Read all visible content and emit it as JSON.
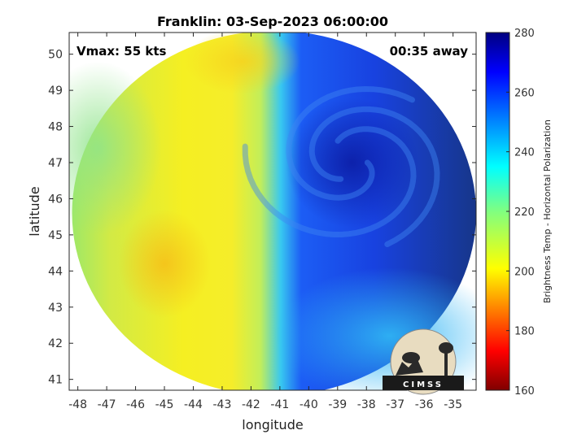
{
  "chart_data": {
    "type": "heatmap",
    "title": "Franklin: 03-Sep-2023 06:00:00",
    "xlabel": "longitude",
    "ylabel": "latitude",
    "xlim": [
      -48.3,
      -34.2
    ],
    "ylim": [
      40.7,
      50.6
    ],
    "x_ticks": [
      -48,
      -47,
      -46,
      -45,
      -44,
      -43,
      -42,
      -41,
      -40,
      -39,
      -38,
      -37,
      -36,
      -35
    ],
    "y_ticks": [
      41,
      42,
      43,
      44,
      45,
      46,
      47,
      48,
      49,
      50
    ],
    "annotations": {
      "vmax": "Vmax: 55 kts",
      "time_away": "00:35 away"
    },
    "colorbar": {
      "label": "Brightness Temp - Horizontal Polarization",
      "min": 160,
      "max": 280,
      "ticks": [
        160,
        180,
        200,
        220,
        240,
        260,
        280
      ],
      "colormap": "jet"
    },
    "swath": {
      "center_lon": -41.2,
      "center_lat": 45.6,
      "radius_lon": 7.0,
      "radius_lat": 5.05
    },
    "storm_center": {
      "lon": -38.5,
      "lat": 47.0
    },
    "temperature_fields": [
      {
        "region": "west (-48 to -42 lon)",
        "value": 207
      },
      {
        "region": "warm patch near -45 lon, 44 lat",
        "value": 200
      },
      {
        "region": "northwest edge near -47 lon, 47.5 lat",
        "value": 226
      },
      {
        "region": "storm core near -38.5 lon, 47 lat",
        "value": 264
      },
      {
        "region": "southeast (-38 to -35 lon, 41-43 lat)",
        "value": 243
      }
    ],
    "logo": {
      "text": "CIMSS"
    }
  }
}
